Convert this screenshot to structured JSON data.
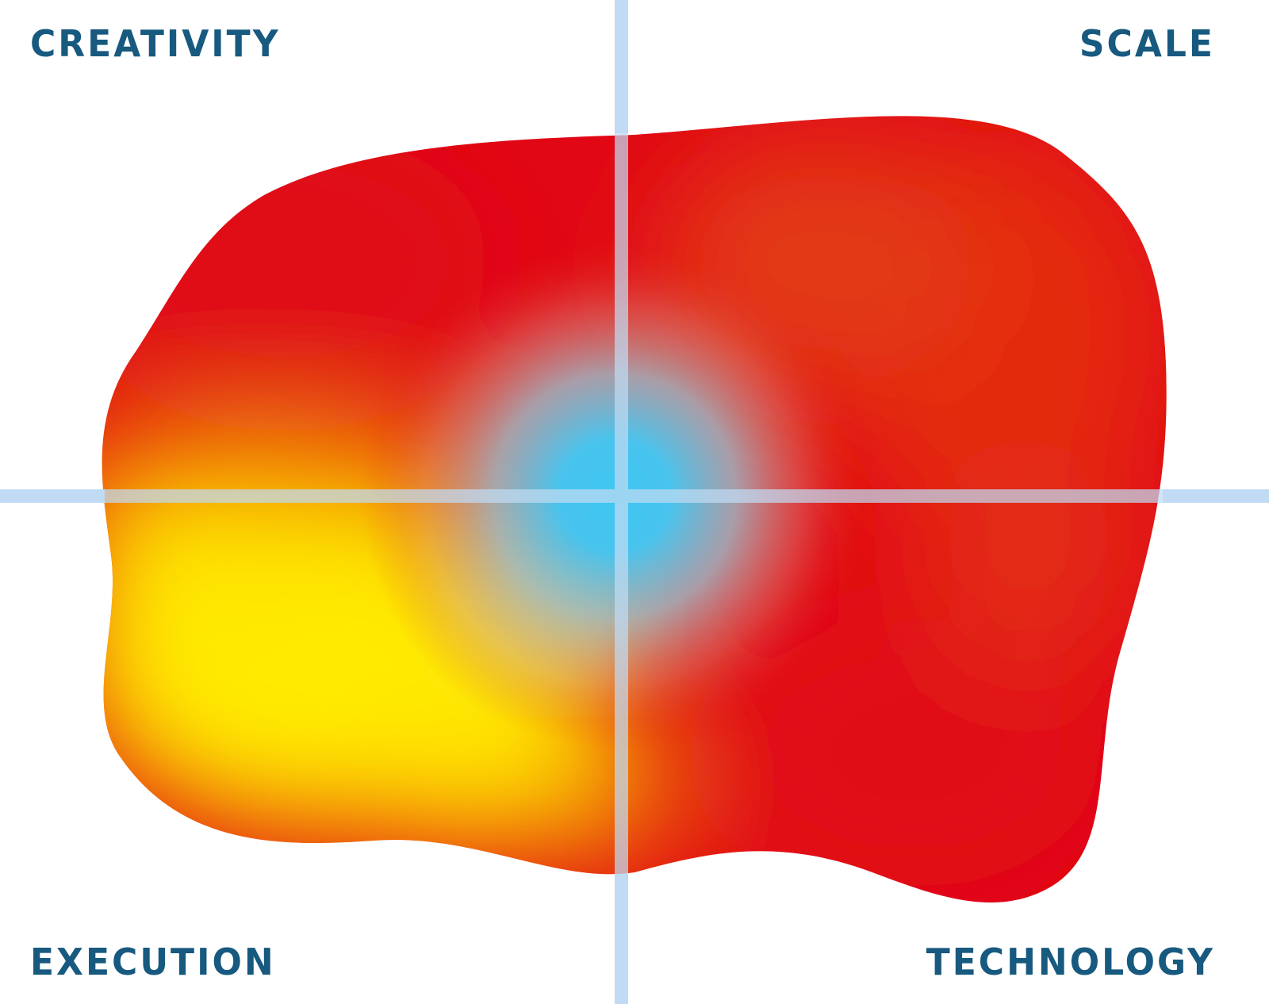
{
  "quadrants": {
    "top_left": "CREATIVITY",
    "top_right": "SCALE",
    "bottom_left": "EXECUTION",
    "bottom_right": "TECHNOLOGY"
  },
  "colors": {
    "label_text": "#17597f",
    "axis_line": "#c0dbf3",
    "heat_red": "#e10715",
    "heat_orange_red": "#e4300f",
    "heat_yellow": "#ffea00",
    "heat_orange": "#f5a300",
    "center_cyan": "#3ec6f2",
    "background": "#ffffff"
  }
}
